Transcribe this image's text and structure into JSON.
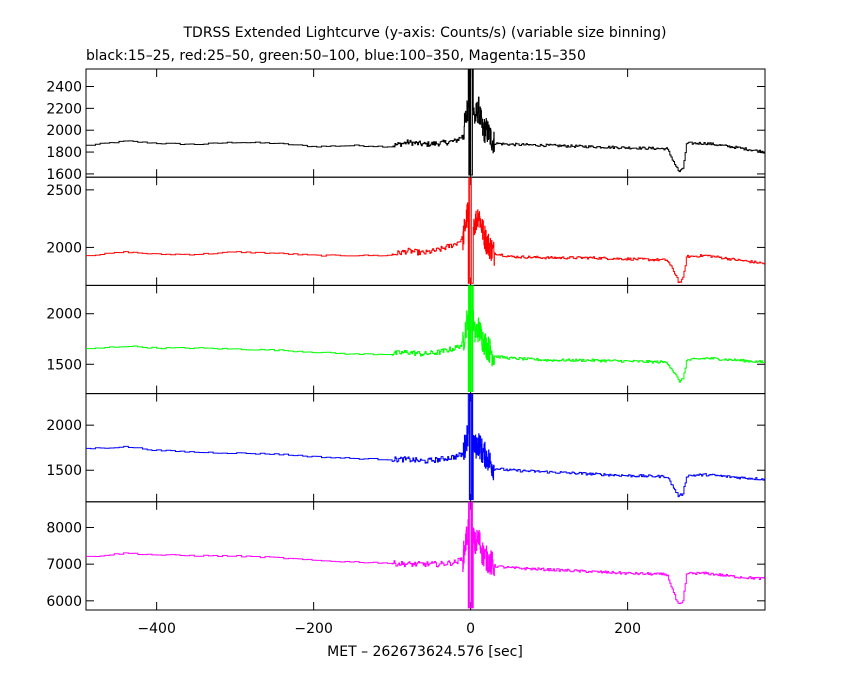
{
  "title": "TDRSS Extended Lightcurve (y-axis: Counts/s) (variable size binning)",
  "subtitle": "black:15–25, red:25–50, green:50–100, blue:100–350, Magenta:15–350",
  "chart_data": {
    "type": "line",
    "xlabel": "MET – 262673624.576 [sec]",
    "xlim": [
      -490,
      375
    ],
    "xticks": [
      -400,
      -200,
      0,
      200
    ],
    "panels": [
      {
        "name": "black:15–25",
        "color": "#000000",
        "ylim": [
          1570,
          2560
        ],
        "yticks": [
          1600,
          1800,
          2000,
          2200,
          2400
        ],
        "series": {
          "x": [
            -490,
            -440,
            -400,
            -350,
            -300,
            -250,
            -200,
            -150,
            -105,
            -80,
            -60,
            -40,
            -20,
            -10,
            0,
            5,
            10,
            15,
            20,
            30,
            50,
            100,
            150,
            200,
            250,
            262,
            265,
            270,
            275,
            300,
            340,
            375
          ],
          "y": [
            1860,
            1900,
            1880,
            1870,
            1890,
            1880,
            1850,
            1860,
            1850,
            1890,
            1870,
            1880,
            1900,
            1950,
            2380,
            2100,
            2200,
            2000,
            2000,
            1880,
            1870,
            1860,
            1850,
            1840,
            1830,
            1660,
            1620,
            1640,
            1880,
            1880,
            1840,
            1800
          ]
        }
      },
      {
        "name": "red:25–50",
        "color": "#ff0000",
        "ylim": [
          1670,
          2610
        ],
        "yticks": [
          2000,
          2500
        ],
        "series": {
          "x": [
            -490,
            -440,
            -400,
            -350,
            -300,
            -250,
            -200,
            -150,
            -105,
            -80,
            -60,
            -40,
            -20,
            -10,
            0,
            5,
            10,
            15,
            20,
            30,
            50,
            100,
            150,
            200,
            250,
            262,
            265,
            270,
            275,
            300,
            340,
            375
          ],
          "y": [
            1930,
            1960,
            1940,
            1940,
            1960,
            1950,
            1930,
            1930,
            1930,
            1970,
            1950,
            1980,
            2030,
            2080,
            2450,
            2200,
            2300,
            2150,
            2050,
            1950,
            1920,
            1910,
            1910,
            1900,
            1890,
            1750,
            1690,
            1720,
            1920,
            1930,
            1890,
            1860
          ]
        }
      },
      {
        "name": "green:50–100",
        "color": "#00ff00",
        "ylim": [
          1210,
          2280
        ],
        "yticks": [
          1500,
          2000
        ],
        "series": {
          "x": [
            -490,
            -440,
            -400,
            -350,
            -300,
            -250,
            -200,
            -150,
            -105,
            -80,
            -60,
            -40,
            -20,
            -10,
            0,
            5,
            10,
            15,
            20,
            30,
            50,
            100,
            150,
            200,
            250,
            262,
            265,
            270,
            275,
            300,
            340,
            375
          ],
          "y": [
            1650,
            1680,
            1660,
            1660,
            1650,
            1640,
            1620,
            1600,
            1600,
            1620,
            1600,
            1620,
            1660,
            1700,
            2150,
            1800,
            1850,
            1750,
            1680,
            1580,
            1560,
            1540,
            1540,
            1530,
            1520,
            1380,
            1330,
            1350,
            1540,
            1560,
            1540,
            1520
          ]
        }
      },
      {
        "name": "blue:100–350",
        "color": "#0000ff",
        "ylim": [
          1150,
          2350
        ],
        "yticks": [
          1500,
          2000
        ],
        "series": {
          "x": [
            -490,
            -440,
            -400,
            -350,
            -300,
            -250,
            -200,
            -150,
            -105,
            -80,
            -60,
            -40,
            -20,
            -10,
            0,
            5,
            10,
            15,
            20,
            30,
            50,
            100,
            150,
            200,
            250,
            262,
            265,
            270,
            275,
            300,
            340,
            375
          ],
          "y": [
            1740,
            1760,
            1720,
            1700,
            1690,
            1680,
            1650,
            1630,
            1620,
            1620,
            1600,
            1620,
            1650,
            1680,
            2050,
            1750,
            1800,
            1700,
            1650,
            1520,
            1500,
            1480,
            1460,
            1440,
            1430,
            1250,
            1210,
            1240,
            1440,
            1450,
            1420,
            1400
          ]
        }
      },
      {
        "name": "Magenta:15–350",
        "color": "#ff00ff",
        "ylim": [
          5750,
          8700
        ],
        "yticks": [
          6000,
          7000,
          8000
        ],
        "series": {
          "x": [
            -490,
            -440,
            -400,
            -350,
            -300,
            -250,
            -200,
            -150,
            -105,
            -80,
            -60,
            -40,
            -20,
            -10,
            0,
            5,
            10,
            15,
            20,
            30,
            50,
            100,
            150,
            200,
            250,
            262,
            265,
            270,
            275,
            300,
            340,
            375
          ],
          "y": [
            7200,
            7300,
            7250,
            7230,
            7220,
            7180,
            7100,
            7060,
            7030,
            7000,
            7000,
            7000,
            7050,
            7150,
            8400,
            7500,
            7700,
            7300,
            7150,
            6950,
            6900,
            6850,
            6800,
            6750,
            6720,
            6000,
            5880,
            5950,
            6750,
            6750,
            6650,
            6600
          ]
        }
      }
    ]
  }
}
